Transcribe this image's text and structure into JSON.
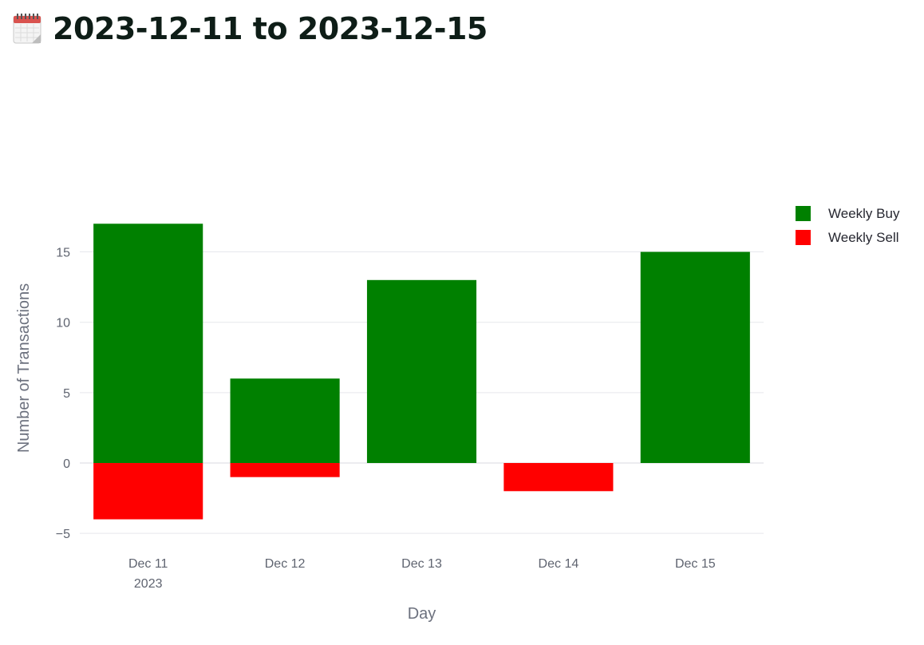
{
  "page": {
    "title": "2023-12-11 to 2023-12-15",
    "title_icon": "calendar-icon"
  },
  "chart_data": {
    "type": "bar",
    "barmode": "relative",
    "categories": [
      "Dec 11",
      "Dec 12",
      "Dec 13",
      "Dec 14",
      "Dec 15"
    ],
    "first_category_year": "2023",
    "series": [
      {
        "name": "Weekly Buy",
        "color": "#008000",
        "values": [
          17,
          6,
          13,
          0,
          15
        ]
      },
      {
        "name": "Weekly Sell",
        "color": "#ff0000",
        "values": [
          -4,
          -1,
          0,
          -2,
          0
        ]
      }
    ],
    "xlabel": "Day",
    "ylabel": "Number of Transactions",
    "ylim": [
      -5.5,
      19
    ],
    "yticks": [
      -5,
      0,
      5,
      10,
      15
    ],
    "ytick_labels": [
      "−5",
      "0",
      "5",
      "10",
      "15"
    ],
    "grid": true,
    "legend": "top-right"
  }
}
